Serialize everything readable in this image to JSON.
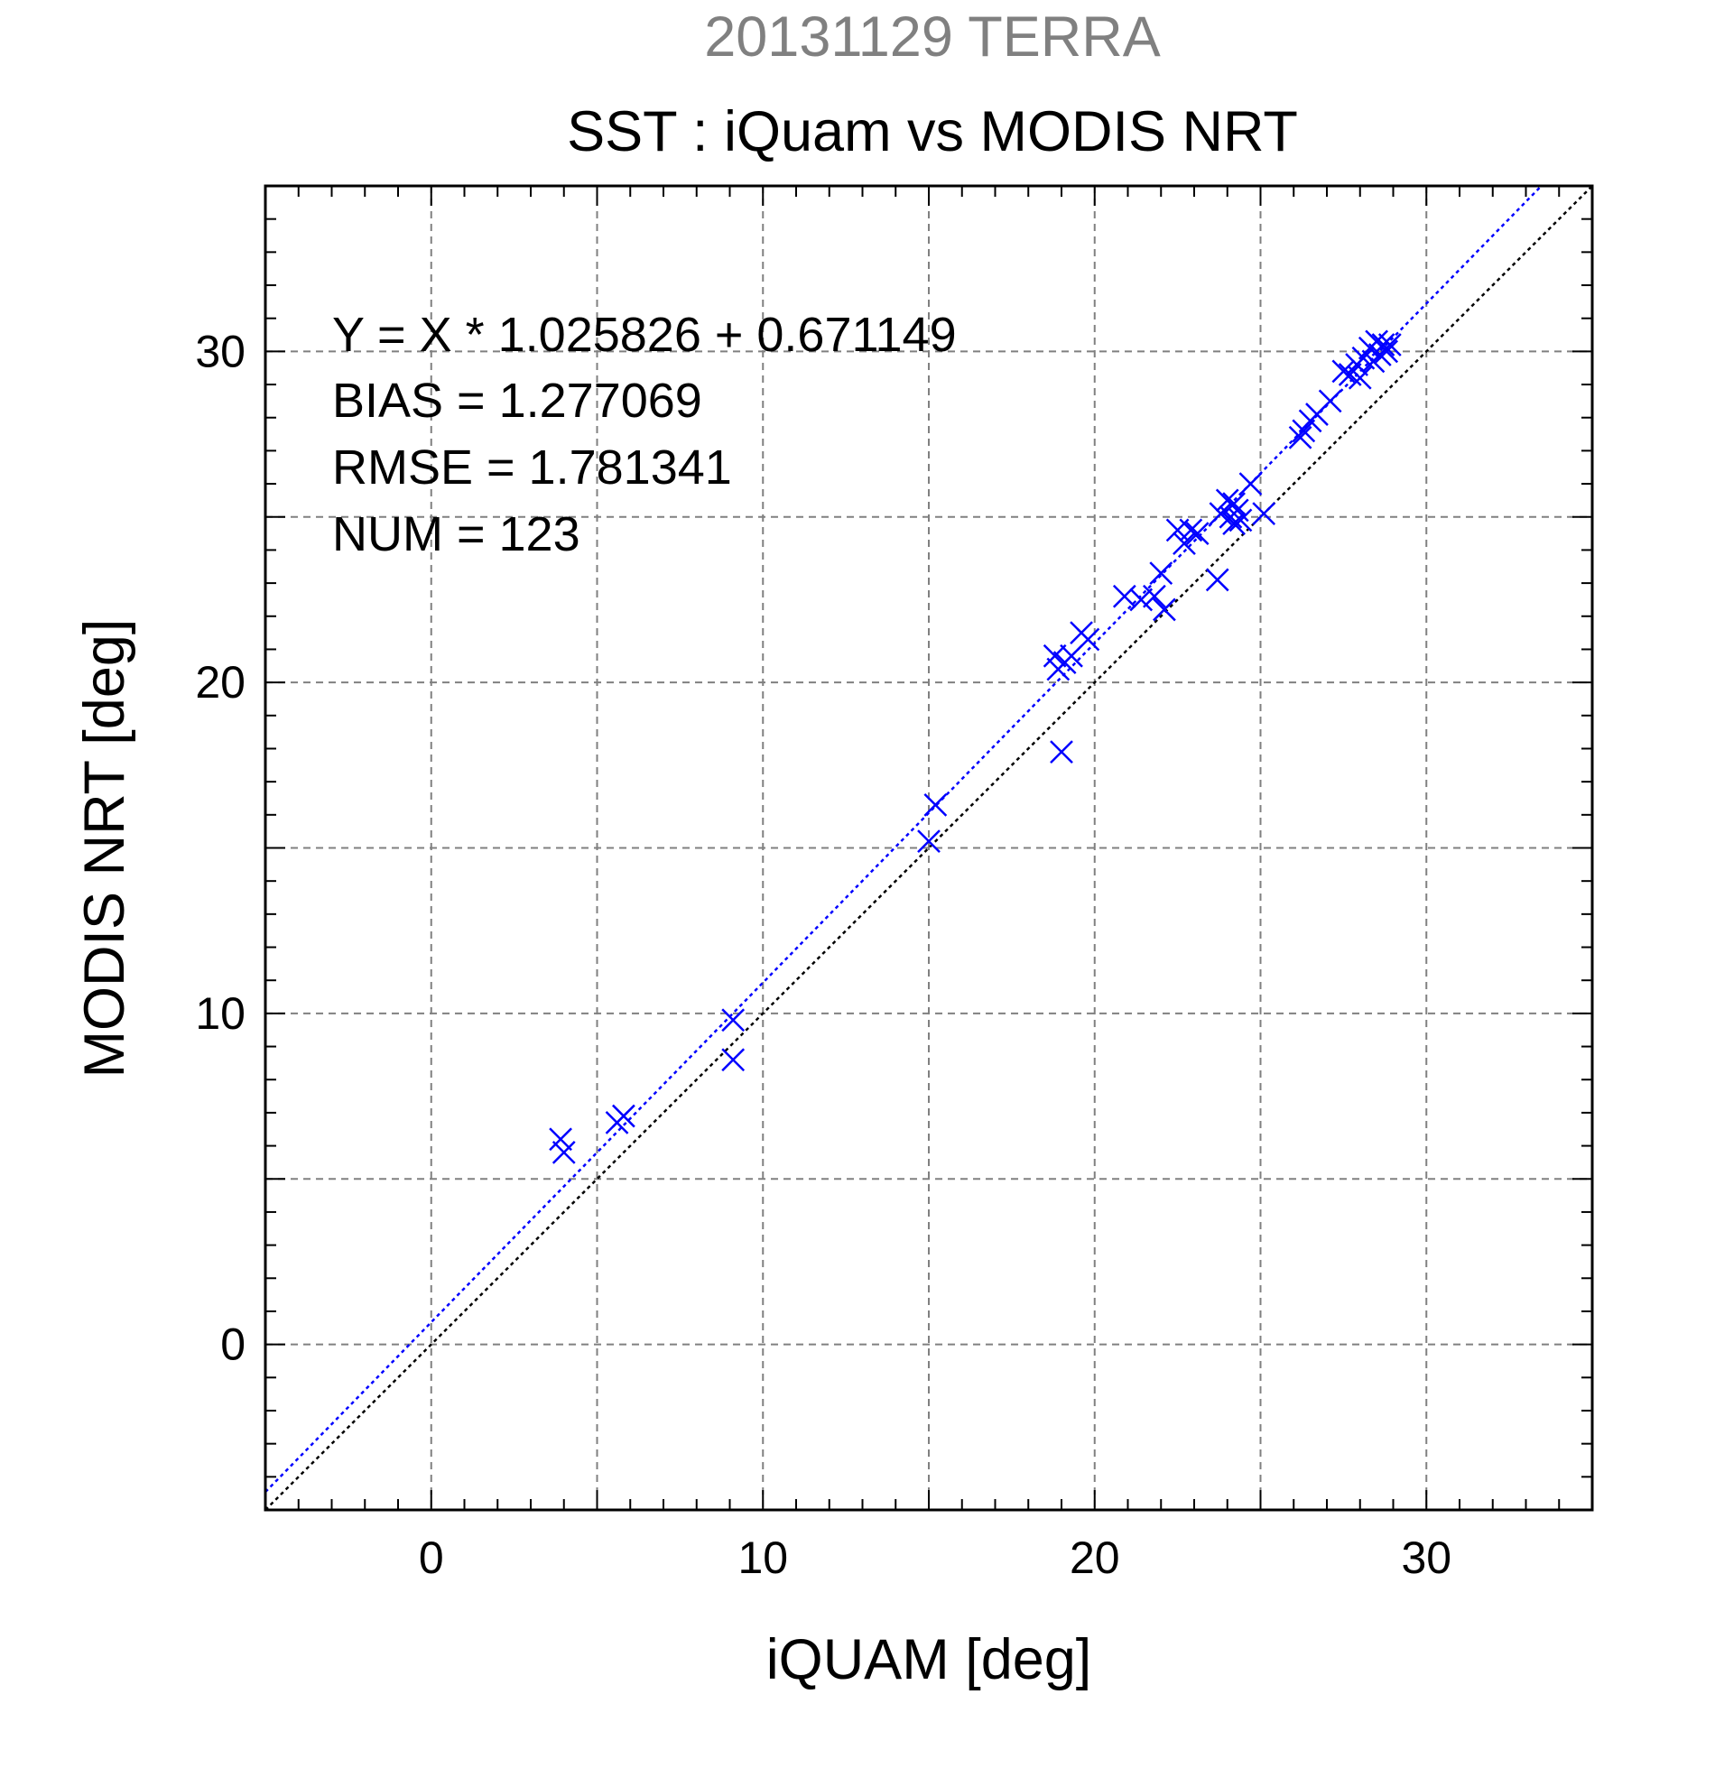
{
  "chart_data": {
    "type": "scatter",
    "super_title": "20131129 TERRA",
    "title": "SST : iQuam vs MODIS NRT",
    "xlabel": "iQUAM [deg]",
    "ylabel": "MODIS NRT [deg]",
    "xlim": [
      -5,
      35
    ],
    "ylim": [
      -5,
      35
    ],
    "x_ticks": [
      0,
      10,
      20,
      30
    ],
    "y_ticks": [
      0,
      10,
      20,
      30
    ],
    "x_tick_labels": [
      "0",
      "10",
      "20",
      "30"
    ],
    "y_tick_labels": [
      "0",
      "10",
      "20",
      "30"
    ],
    "grid": true,
    "grid_step": 5,
    "minor_tick_step": 1,
    "annotations": [
      "Y = X * 1.025826 + 0.671149",
      "BIAS = 1.277069",
      "RMSE = 1.781341",
      "NUM = 123"
    ],
    "reference_line": {
      "slope": 1,
      "intercept": 0,
      "color": "#000000",
      "style": "dotted"
    },
    "fit_line": {
      "slope": 1.025826,
      "intercept": 0.671149,
      "color": "#0000ff",
      "style": "dotted"
    },
    "marker": {
      "symbol": "x",
      "color": "#0000ff"
    },
    "series": [
      {
        "points": [
          [
            3.9,
            6.2
          ],
          [
            4.0,
            5.8
          ],
          [
            5.6,
            6.7
          ],
          [
            5.8,
            6.9
          ],
          [
            9.1,
            9.8
          ],
          [
            9.1,
            8.6
          ],
          [
            15.0,
            15.2
          ],
          [
            15.2,
            16.3
          ],
          [
            18.8,
            20.8
          ],
          [
            18.9,
            20.4
          ],
          [
            19.0,
            17.9
          ],
          [
            19.1,
            20.6
          ],
          [
            19.3,
            20.8
          ],
          [
            19.6,
            21.5
          ],
          [
            19.8,
            21.3
          ],
          [
            20.9,
            22.6
          ],
          [
            21.4,
            22.5
          ],
          [
            21.8,
            22.6
          ],
          [
            22.0,
            23.3
          ],
          [
            22.1,
            22.2
          ],
          [
            22.5,
            24.6
          ],
          [
            22.7,
            24.2
          ],
          [
            22.9,
            24.6
          ],
          [
            23.1,
            24.5
          ],
          [
            23.7,
            23.1
          ],
          [
            23.8,
            25.1
          ],
          [
            24.0,
            25.5
          ],
          [
            24.1,
            25.0
          ],
          [
            24.2,
            24.8
          ],
          [
            24.2,
            25.4
          ],
          [
            24.3,
            25.2
          ],
          [
            24.4,
            24.9
          ],
          [
            24.7,
            26.0
          ],
          [
            25.1,
            25.1
          ],
          [
            26.2,
            27.4
          ],
          [
            26.3,
            27.6
          ],
          [
            26.5,
            27.9
          ],
          [
            26.7,
            28.1
          ],
          [
            27.1,
            28.5
          ],
          [
            27.5,
            29.4
          ],
          [
            27.7,
            29.3
          ],
          [
            27.9,
            29.6
          ],
          [
            28.0,
            29.2
          ],
          [
            28.1,
            29.8
          ],
          [
            28.3,
            30.1
          ],
          [
            28.4,
            29.7
          ],
          [
            28.5,
            30.3
          ],
          [
            28.6,
            29.9
          ],
          [
            28.7,
            30.2
          ],
          [
            28.8,
            30.0
          ],
          [
            28.9,
            30.2
          ]
        ]
      }
    ]
  }
}
